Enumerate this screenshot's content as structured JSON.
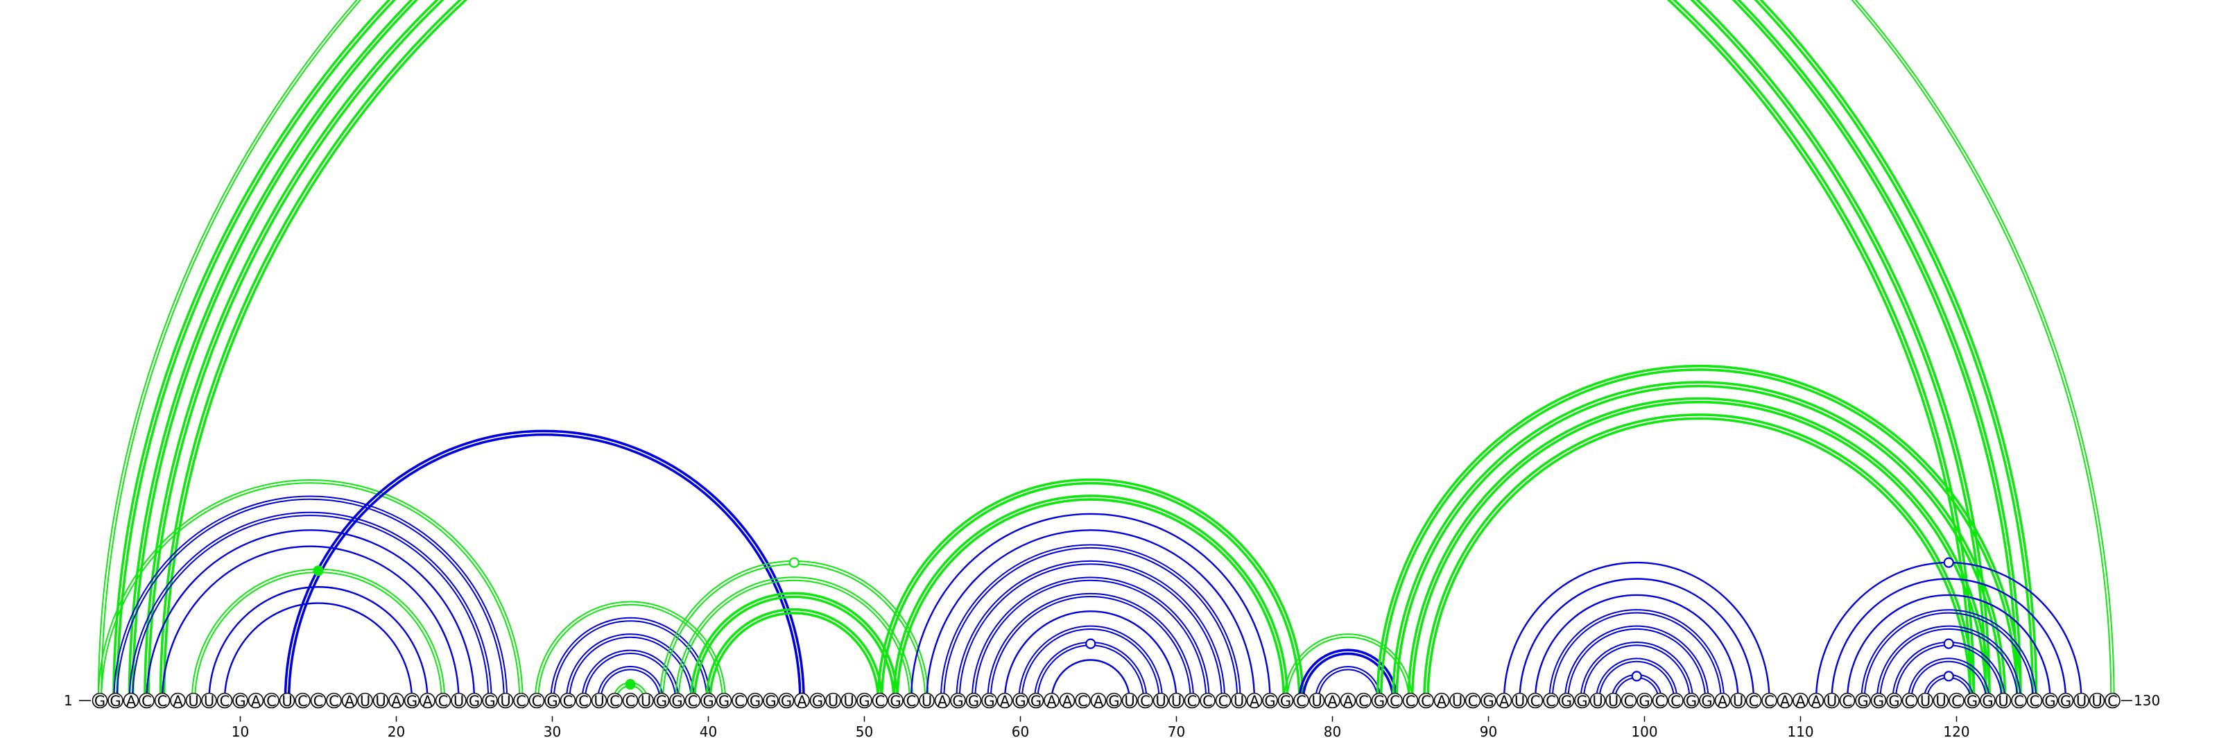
{
  "sequence": "GGACCAUUCGACUCCCAUUAGACUGGUCCGCCUCCUGGCGGCGGGAGUUGCGCUAGGGAGGAACAGUCUUCCCUAGGCUAACGCCCAUCGAUCCGGUUCGCCGGAUCCAAAUCGGGCUUCGGUCCGGUUC",
  "start_label": "1",
  "end_label": "130",
  "ticks": [
    10,
    20,
    30,
    40,
    50,
    60,
    70,
    80,
    90,
    100,
    110,
    120
  ],
  "colors": {
    "blue": "#0000dd",
    "green": "#11e611"
  },
  "arcs": [
    {
      "i": 1,
      "j": 130,
      "color": "green",
      "style": "double"
    },
    {
      "i": 2,
      "j": 125,
      "color": "green",
      "style": "double-thick"
    },
    {
      "i": 3,
      "j": 124,
      "color": "green",
      "style": "double-thick"
    },
    {
      "i": 4,
      "j": 122,
      "color": "green",
      "style": "double-thick"
    },
    {
      "i": 5,
      "j": 121,
      "color": "green",
      "style": "double-thick"
    },
    {
      "i": 1,
      "j": 28,
      "color": "green",
      "style": "double"
    },
    {
      "i": 2,
      "j": 27,
      "color": "blue",
      "style": "double"
    },
    {
      "i": 3,
      "j": 26,
      "color": "blue",
      "style": "double"
    },
    {
      "i": 4,
      "j": 25,
      "color": "blue",
      "style": "single"
    },
    {
      "i": 5,
      "j": 24,
      "color": "blue",
      "style": "single"
    },
    {
      "i": 7,
      "j": 23,
      "color": "green",
      "style": "double"
    },
    {
      "i": 8,
      "j": 22,
      "color": "blue",
      "style": "single"
    },
    {
      "i": 9,
      "j": 21,
      "color": "blue",
      "style": "single"
    },
    {
      "i": 13,
      "j": 46,
      "color": "blue",
      "style": "double-thick"
    },
    {
      "i": 29,
      "j": 41,
      "color": "green",
      "style": "double"
    },
    {
      "i": 30,
      "j": 40,
      "color": "blue",
      "style": "double"
    },
    {
      "i": 31,
      "j": 39,
      "color": "blue",
      "style": "double"
    },
    {
      "i": 32,
      "j": 38,
      "color": "blue",
      "style": "double"
    },
    {
      "i": 33,
      "j": 37,
      "color": "blue",
      "style": "double"
    },
    {
      "i": 34,
      "j": 36,
      "color": "green",
      "style": "double"
    },
    {
      "i": 37,
      "j": 54,
      "color": "green",
      "style": "double"
    },
    {
      "i": 38,
      "j": 53,
      "color": "green",
      "style": "double"
    },
    {
      "i": 39,
      "j": 52,
      "color": "green",
      "style": "double-thick"
    },
    {
      "i": 40,
      "j": 51,
      "color": "green",
      "style": "double-thick"
    },
    {
      "i": 51,
      "j": 78,
      "color": "green",
      "style": "double-thick"
    },
    {
      "i": 52,
      "j": 77,
      "color": "green",
      "style": "double-thick"
    },
    {
      "i": 53,
      "j": 76,
      "color": "blue",
      "style": "single"
    },
    {
      "i": 54,
      "j": 75,
      "color": "blue",
      "style": "single"
    },
    {
      "i": 55,
      "j": 74,
      "color": "blue",
      "style": "double"
    },
    {
      "i": 56,
      "j": 73,
      "color": "blue",
      "style": "double"
    },
    {
      "i": 57,
      "j": 72,
      "color": "blue",
      "style": "double"
    },
    {
      "i": 58,
      "j": 71,
      "color": "blue",
      "style": "double"
    },
    {
      "i": 59,
      "j": 70,
      "color": "blue",
      "style": "single"
    },
    {
      "i": 60,
      "j": 69,
      "color": "blue",
      "style": "double"
    },
    {
      "i": 61,
      "j": 68,
      "color": "blue",
      "style": "double"
    },
    {
      "i": 62,
      "j": 67,
      "color": "blue",
      "style": "single"
    },
    {
      "i": 77,
      "j": 85,
      "color": "green",
      "style": "double"
    },
    {
      "i": 78,
      "j": 84,
      "color": "blue",
      "style": "double-thick"
    },
    {
      "i": 79,
      "j": 83,
      "color": "blue",
      "style": "double"
    },
    {
      "i": 83,
      "j": 124,
      "color": "green",
      "style": "double-thick"
    },
    {
      "i": 84,
      "j": 123,
      "color": "green",
      "style": "double-thick"
    },
    {
      "i": 85,
      "j": 122,
      "color": "green",
      "style": "double-thick"
    },
    {
      "i": 86,
      "j": 121,
      "color": "green",
      "style": "double-thick"
    },
    {
      "i": 91,
      "j": 108,
      "color": "blue",
      "style": "single"
    },
    {
      "i": 92,
      "j": 107,
      "color": "blue",
      "style": "single"
    },
    {
      "i": 93,
      "j": 106,
      "color": "blue",
      "style": "single"
    },
    {
      "i": 94,
      "j": 105,
      "color": "blue",
      "style": "double"
    },
    {
      "i": 95,
      "j": 104,
      "color": "blue",
      "style": "double"
    },
    {
      "i": 96,
      "j": 103,
      "color": "blue",
      "style": "double"
    },
    {
      "i": 97,
      "j": 102,
      "color": "blue",
      "style": "double"
    },
    {
      "i": 98,
      "j": 101,
      "color": "blue",
      "style": "double"
    },
    {
      "i": 111,
      "j": 128,
      "color": "blue",
      "style": "single"
    },
    {
      "i": 112,
      "j": 127,
      "color": "blue",
      "style": "single"
    },
    {
      "i": 113,
      "j": 126,
      "color": "blue",
      "style": "single"
    },
    {
      "i": 114,
      "j": 125,
      "color": "blue",
      "style": "double"
    },
    {
      "i": 115,
      "j": 124,
      "color": "blue",
      "style": "double"
    },
    {
      "i": 116,
      "j": 123,
      "color": "blue",
      "style": "double"
    },
    {
      "i": 117,
      "j": 122,
      "color": "blue",
      "style": "double"
    },
    {
      "i": 118,
      "j": 121,
      "color": "blue",
      "style": "double"
    }
  ],
  "markers": [
    {
      "pos": 65.5,
      "top_of_arc": [
        1,
        130
      ],
      "color": "green",
      "filled": false
    },
    {
      "pos": 15,
      "top_of_arc": [
        7,
        23
      ],
      "color": "green",
      "filled": true
    },
    {
      "pos": 35,
      "top_of_arc": [
        34,
        36
      ],
      "color": "green",
      "filled": true
    },
    {
      "pos": 45.5,
      "top_of_arc": [
        37,
        54
      ],
      "color": "green",
      "filled": false
    },
    {
      "pos": 64.5,
      "top_of_arc": [
        61,
        68
      ],
      "color": "blue",
      "filled": false
    },
    {
      "pos": 99.5,
      "top_of_arc": [
        98,
        101
      ],
      "color": "blue",
      "filled": false
    },
    {
      "pos": 119.5,
      "top_of_arc": [
        111,
        128
      ],
      "color": "blue",
      "filled": false
    },
    {
      "pos": 119.5,
      "top_of_arc": [
        116,
        123
      ],
      "color": "blue",
      "filled": false
    },
    {
      "pos": 119.5,
      "top_of_arc": [
        118,
        121
      ],
      "color": "blue",
      "filled": false
    }
  ]
}
